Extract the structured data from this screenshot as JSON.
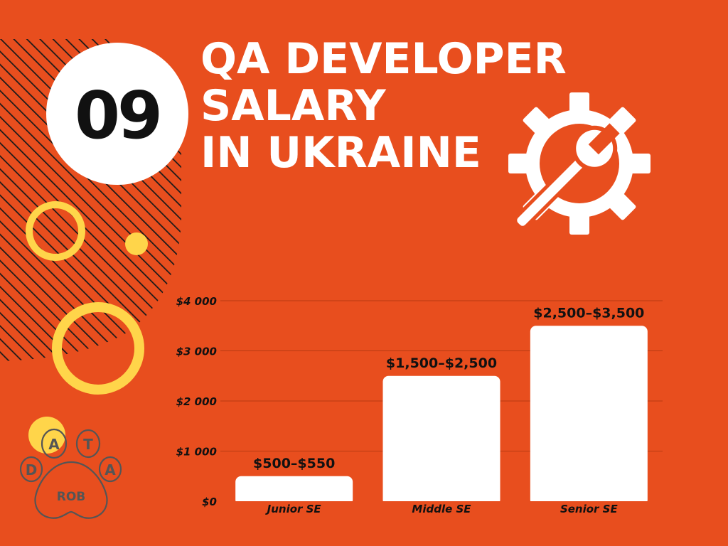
{
  "badge": {
    "number": "09"
  },
  "title_lines": [
    "QA DEVELOPER",
    "SALARY",
    "IN UKRAINE"
  ],
  "colors": {
    "background": "#e84e1e",
    "bar": "#ffffff",
    "accent_yellow": "#ffd54a",
    "text": "#111111"
  },
  "icons": {
    "tool": "gear-wrench-icon",
    "logo": "paw-logo-icon"
  },
  "logo": {
    "letters": [
      "D",
      "A",
      "T",
      "A"
    ],
    "text": "ROB"
  },
  "chart_data": {
    "type": "bar",
    "categories": [
      "Junior SE",
      "Middle SE",
      "Senior SE"
    ],
    "values": [
      500,
      2500,
      3500
    ],
    "data_labels": [
      "$500–$550",
      "$1,500–$2,500",
      "$2,500–$3,500"
    ],
    "ylim": [
      0,
      4000
    ],
    "y_ticks": [
      0,
      1000,
      2000,
      3000,
      4000
    ],
    "y_tick_labels": [
      "$0",
      "$1 000",
      "$2 000",
      "$3 000",
      "$4 000"
    ],
    "grid": true,
    "title": "",
    "xlabel": "",
    "ylabel": ""
  }
}
